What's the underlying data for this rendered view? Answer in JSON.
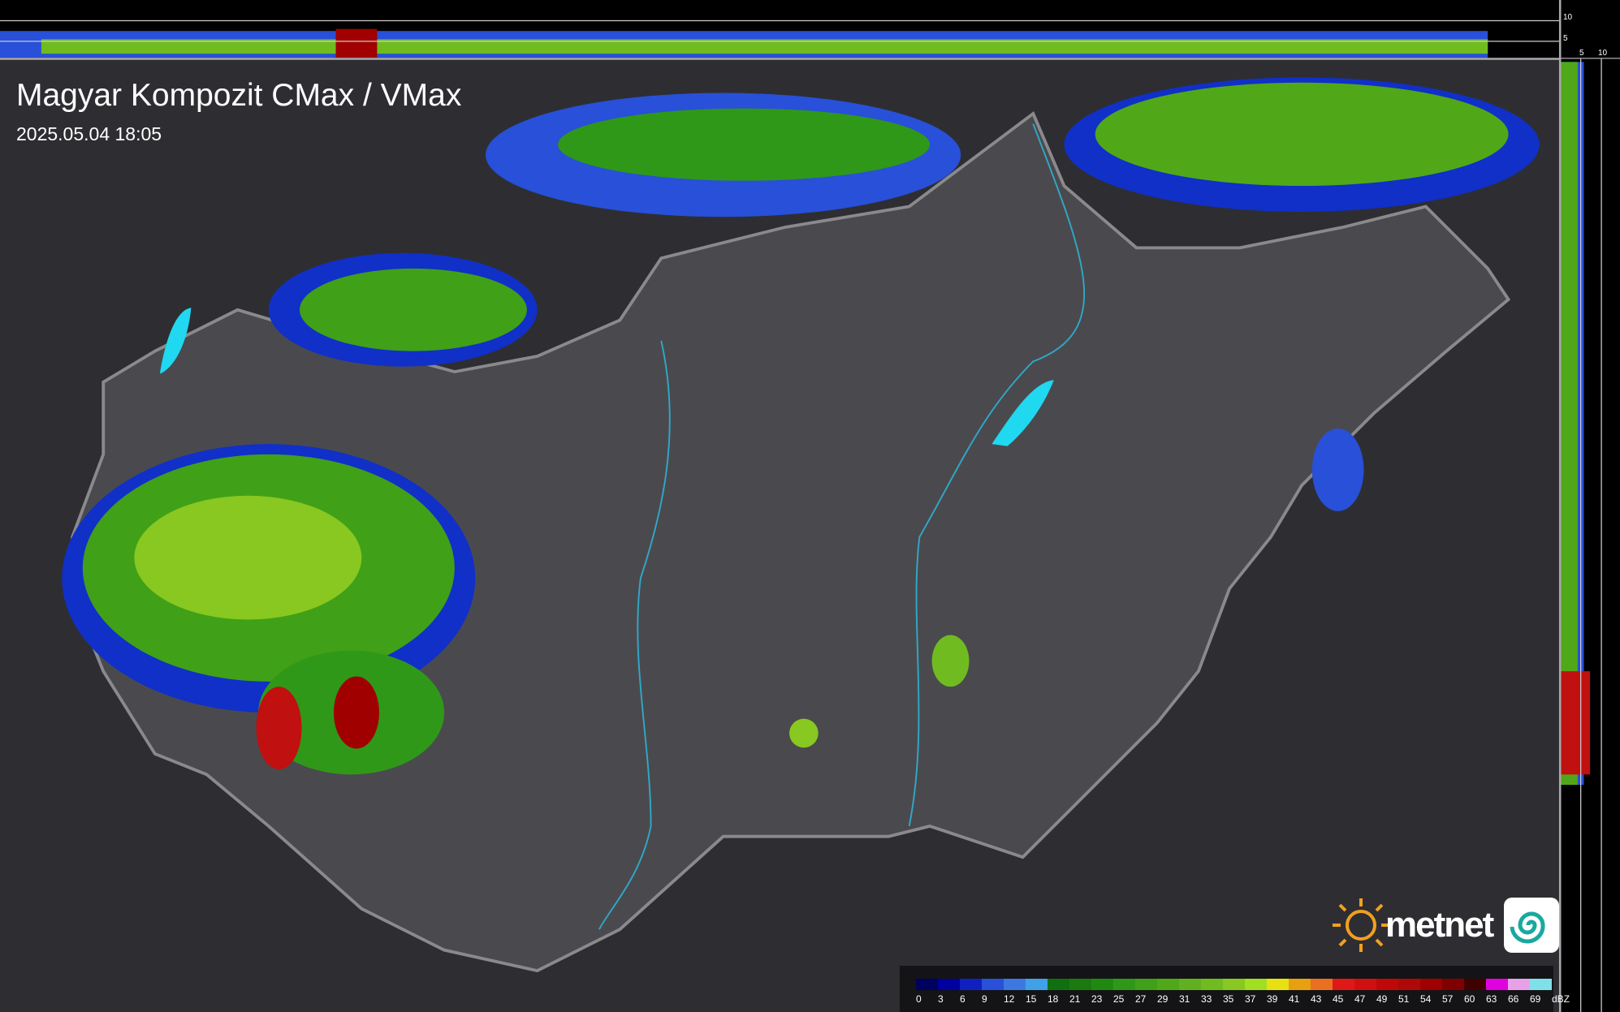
{
  "title": "Magyar Kompozit CMax / VMax",
  "timestamp": "2025.05.04 18:05",
  "profile_ticks": {
    "top_strip": [
      "10",
      "5"
    ],
    "right_strip": [
      "5",
      "10"
    ]
  },
  "brand": {
    "name": "metnet",
    "logo_icon": "sun-icon",
    "app_icon": "spiral-icon",
    "sun_color": "#f0a020"
  },
  "colors": {
    "background": "#2e2e32",
    "country_fill": "#4a4a4e",
    "border": "#8a8a8e",
    "rivers": "#30a8c8",
    "lakes": "#20d8f0"
  },
  "legend": {
    "unit": "dBZ",
    "entries": [
      {
        "value": "0",
        "color": "#000060"
      },
      {
        "value": "3",
        "color": "#0000a0"
      },
      {
        "value": "6",
        "color": "#1020c0"
      },
      {
        "value": "9",
        "color": "#2850d8"
      },
      {
        "value": "12",
        "color": "#3c78e0"
      },
      {
        "value": "15",
        "color": "#40a0e8"
      },
      {
        "value": "18",
        "color": "#107010"
      },
      {
        "value": "21",
        "color": "#1a7a10"
      },
      {
        "value": "23",
        "color": "#208a10"
      },
      {
        "value": "25",
        "color": "#309818"
      },
      {
        "value": "27",
        "color": "#40a018"
      },
      {
        "value": "29",
        "color": "#50a818"
      },
      {
        "value": "31",
        "color": "#60b020"
      },
      {
        "value": "33",
        "color": "#70bc20"
      },
      {
        "value": "35",
        "color": "#88c820"
      },
      {
        "value": "37",
        "color": "#a0e020"
      },
      {
        "value": "39",
        "color": "#e8e010"
      },
      {
        "value": "41",
        "color": "#e8a010"
      },
      {
        "value": "43",
        "color": "#e87020"
      },
      {
        "value": "45",
        "color": "#e01818"
      },
      {
        "value": "47",
        "color": "#d01010"
      },
      {
        "value": "49",
        "color": "#c00808"
      },
      {
        "value": "51",
        "color": "#b00808"
      },
      {
        "value": "54",
        "color": "#a00000"
      },
      {
        "value": "57",
        "color": "#800000"
      },
      {
        "value": "60",
        "color": "#400000"
      },
      {
        "value": "63",
        "color": "#e000e0"
      },
      {
        "value": "66",
        "color": "#e8a0e8"
      },
      {
        "value": "69",
        "color": "#80e0e8"
      }
    ]
  }
}
